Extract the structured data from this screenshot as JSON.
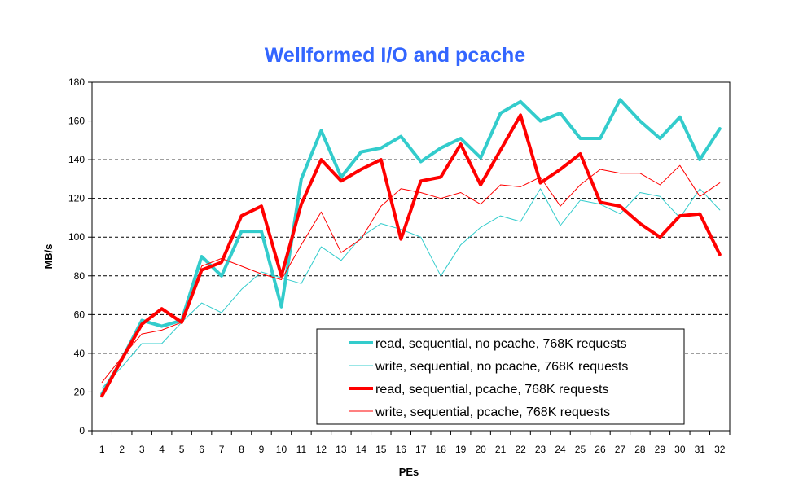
{
  "chart_data": {
    "type": "line",
    "title": "Wellformed I/O and pcache",
    "xlabel": "PEs",
    "ylabel": "MB/s",
    "ylim": [
      0,
      180
    ],
    "yticks": [
      0,
      20,
      40,
      60,
      80,
      100,
      120,
      140,
      160,
      180
    ],
    "x": [
      1,
      2,
      3,
      4,
      5,
      6,
      7,
      8,
      9,
      10,
      11,
      12,
      13,
      14,
      15,
      16,
      17,
      18,
      19,
      20,
      21,
      22,
      23,
      24,
      25,
      26,
      27,
      28,
      29,
      30,
      31,
      32
    ],
    "grid": "horizontal dashed",
    "legend_position": "bottom-right",
    "title_color": "#3366ff",
    "series": [
      {
        "name": "read, sequential, no pcache, 768K requests",
        "color": "#33cccc",
        "thick": true,
        "values": [
          19,
          37,
          57,
          54,
          57,
          90,
          80,
          103,
          103,
          64,
          130,
          155,
          131,
          144,
          146,
          152,
          139,
          146,
          151,
          141,
          164,
          170,
          160,
          164,
          151,
          151,
          171,
          160,
          151,
          162,
          140,
          156
        ]
      },
      {
        "name": "write, sequential, no pcache, 768K requests",
        "color": "#33cccc",
        "thick": false,
        "values": [
          22,
          33,
          45,
          45,
          56,
          66,
          61,
          73,
          82,
          79,
          76,
          95,
          88,
          100,
          107,
          104,
          100,
          80,
          96,
          105,
          111,
          108,
          125,
          106,
          119,
          117,
          112,
          123,
          121,
          110,
          125,
          114
        ]
      },
      {
        "name": "read, sequential, pcache, 768K requests",
        "color": "#ff0000",
        "thick": true,
        "values": [
          18,
          37,
          55,
          63,
          56,
          83,
          87,
          111,
          116,
          80,
          117,
          140,
          129,
          135,
          140,
          99,
          129,
          131,
          148,
          127,
          145,
          163,
          128,
          135,
          143,
          118,
          116,
          107,
          100,
          111,
          112,
          91
        ]
      },
      {
        "name": "write, sequential, pcache, 768K requests",
        "color": "#ff0000",
        "thick": false,
        "values": [
          25,
          38,
          50,
          52,
          56,
          85,
          89,
          85,
          81,
          78,
          96,
          113,
          92,
          99,
          116,
          125,
          123,
          120,
          123,
          117,
          127,
          126,
          131,
          116,
          127,
          135,
          133,
          133,
          127,
          137,
          121,
          128
        ]
      }
    ]
  }
}
